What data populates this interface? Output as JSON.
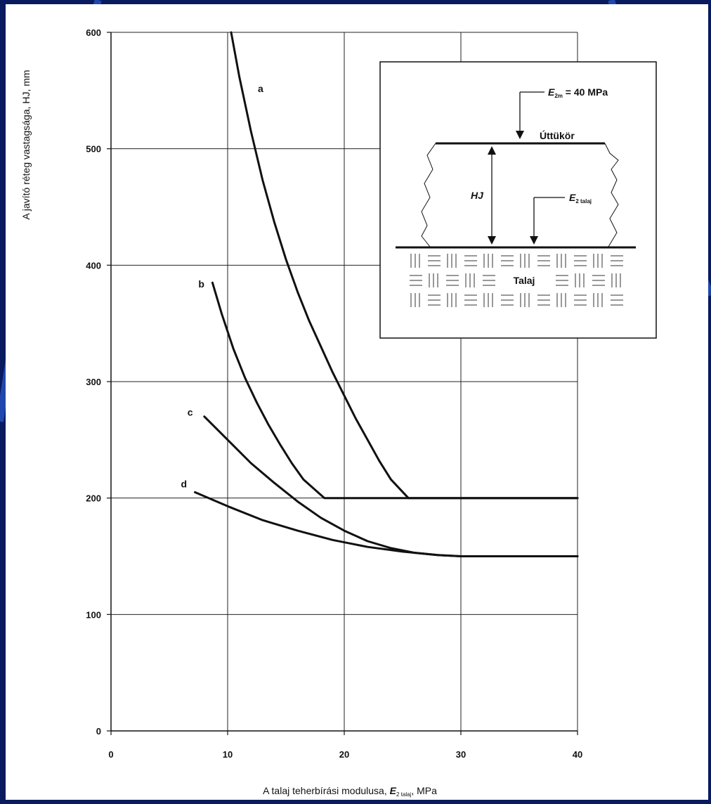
{
  "colors": {
    "frame_background": "#0a1a5e",
    "accent": "#2a5bd0",
    "paper": "#ffffff",
    "ink": "#111111"
  },
  "chart_data": {
    "type": "line",
    "title": "",
    "xlabel_main": "A talaj teherbírási modulusa, ",
    "xlabel_symbol": "E",
    "xlabel_sub": "2 talaj",
    "xlabel_unit": ", MPa",
    "ylabel": "A javító réteg vastagsága, HJ, mm",
    "xlim": [
      0,
      40
    ],
    "ylim": [
      0,
      600
    ],
    "x_ticks": [
      "0",
      "10",
      "20",
      "30",
      "40"
    ],
    "y_ticks": [
      "0",
      "100",
      "200",
      "300",
      "400",
      "500",
      "600"
    ],
    "grid": true,
    "series": [
      {
        "name": "a",
        "x": [
          10.3,
          11,
          12,
          13,
          14,
          15,
          16,
          17,
          18,
          19,
          20,
          21,
          22,
          23,
          24,
          25.5,
          30,
          35,
          40
        ],
        "y": [
          600,
          562,
          515,
          473,
          437,
          405,
          377,
          352,
          330,
          308,
          288,
          268,
          250,
          232,
          216,
          200,
          200,
          200,
          200
        ]
      },
      {
        "name": "b",
        "x": [
          8.7,
          9.5,
          10.5,
          11.5,
          12.5,
          13.5,
          14.5,
          15.5,
          16.5,
          18.3,
          25,
          30,
          35,
          40
        ],
        "y": [
          385,
          358,
          328,
          303,
          282,
          263,
          246,
          230,
          216,
          200,
          200,
          200,
          200,
          200
        ]
      },
      {
        "name": "c",
        "x": [
          8,
          10,
          12,
          14,
          16,
          18,
          20,
          22,
          24,
          26,
          28,
          30,
          35,
          40
        ],
        "y": [
          270,
          250,
          230,
          213,
          197,
          183,
          172,
          163,
          157,
          153,
          151,
          150,
          150,
          150
        ]
      },
      {
        "name": "d",
        "x": [
          7.2,
          10,
          13,
          16,
          19,
          22,
          25,
          28,
          30,
          35,
          40
        ],
        "y": [
          205,
          193,
          181,
          172,
          164,
          158,
          154,
          151,
          150,
          150,
          150
        ]
      }
    ],
    "inset": {
      "top_label_symbol": "E",
      "top_label_sub": "2m",
      "top_label_value": " = 40 MPa",
      "surface_label": "Úttükör",
      "thickness_label": "HJ",
      "subgrade_label_symbol": "E",
      "subgrade_label_sub": "2 talaj",
      "soil_label": "Talaj"
    }
  }
}
